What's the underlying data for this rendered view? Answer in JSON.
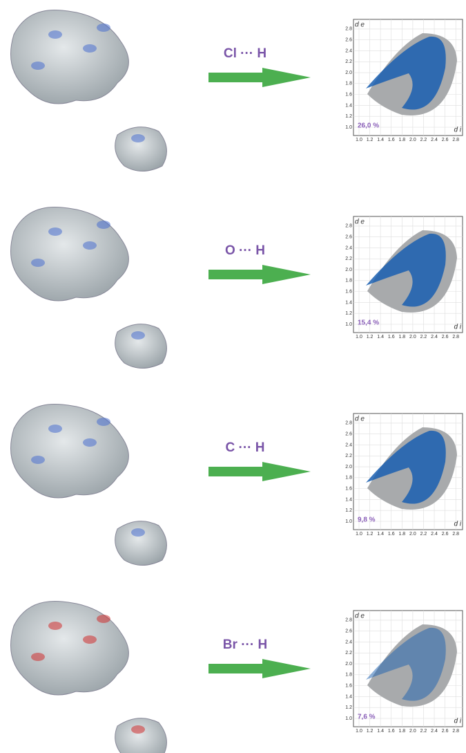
{
  "panels": [
    {
      "label": "Cl ··· H",
      "percent": "26,0 %"
    },
    {
      "label": "O ··· H",
      "percent": "15,4 %"
    },
    {
      "label": "C ··· H",
      "percent": "9,8 %"
    },
    {
      "label": "Br ··· H",
      "percent": "7,6 %"
    }
  ],
  "plot": {
    "y_axis_label": "d e",
    "x_axis_label": "d i",
    "xticks": [
      "1.0",
      "1.2",
      "1.4",
      "1.6",
      "1.8",
      "2.0",
      "2.2",
      "2.4",
      "2.6",
      "2.8"
    ],
    "yticks": [
      "1.0",
      "1.2",
      "1.4",
      "1.6",
      "1.8",
      "2.0",
      "2.2",
      "2.4",
      "2.6",
      "2.8"
    ]
  }
}
